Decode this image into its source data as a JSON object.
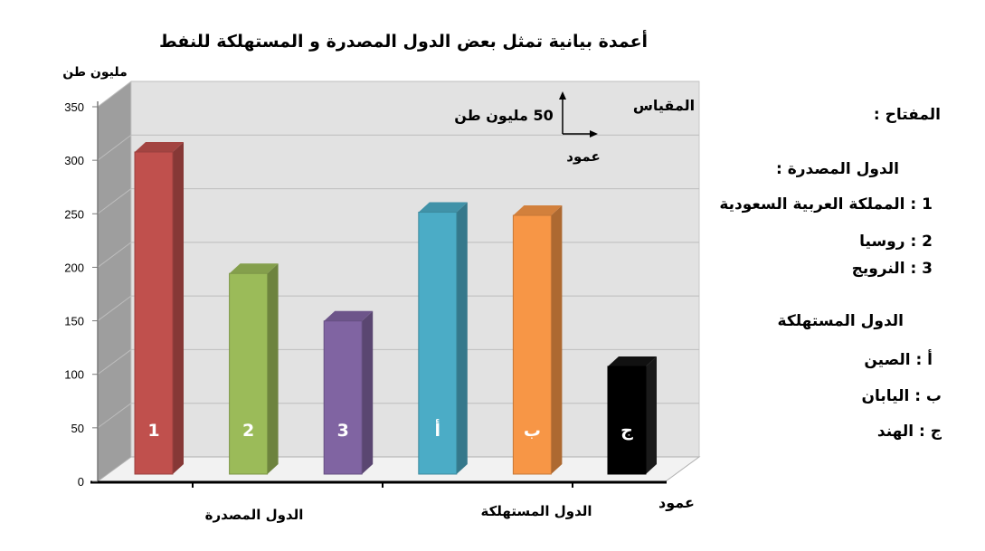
{
  "chart_data": {
    "type": "bar",
    "title": "أعمدة بيانية تمثل بعض الدول المصدرة و المستهلكة للنفط",
    "ylabel": "مليون طن",
    "xlabel": "عمود",
    "ylim": [
      0,
      350
    ],
    "yticks": [
      "0",
      "50",
      "100",
      "150",
      "200",
      "250",
      "300",
      "350"
    ],
    "grid": true,
    "categories": [
      "1",
      "2",
      "3",
      "أ",
      "ب",
      "ج"
    ],
    "values": [
      305,
      190,
      145,
      248,
      245,
      102
    ],
    "colors": [
      "#c0504d",
      "#9bbb59",
      "#8064a2",
      "#4bacc6",
      "#f79646",
      "#000000"
    ],
    "groups": [
      {
        "label": "الدول المصدرة"
      },
      {
        "label": "الدول المستهلكة"
      }
    ],
    "scale": {
      "title": "المقياس",
      "value": "50 مليون طن",
      "axis_label": "عمود"
    }
  },
  "legend": {
    "title": "المفتاح :",
    "exporters_title": "الدول المصدرة :",
    "exporters": [
      "1 : المملكة العربية السعودية",
      "2 : روسيا",
      "3 : النرويج"
    ],
    "consumers_title": "الدول المستهلكة",
    "consumers": [
      "أ : الصين",
      "ب : اليابان",
      "ج : الهند"
    ]
  }
}
